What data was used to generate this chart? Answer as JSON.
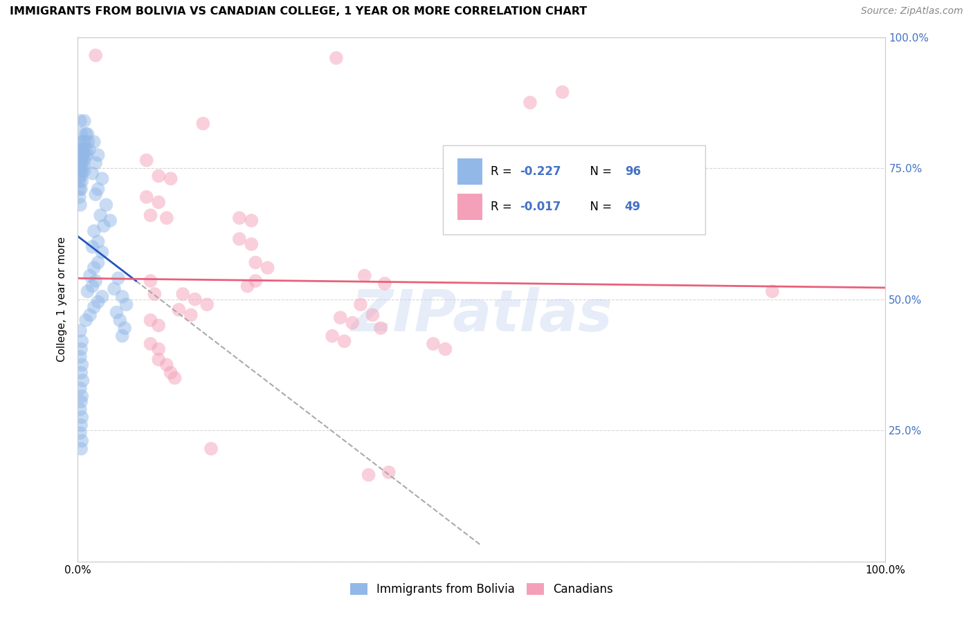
{
  "title": "IMMIGRANTS FROM BOLIVIA VS CANADIAN COLLEGE, 1 YEAR OR MORE CORRELATION CHART",
  "source": "Source: ZipAtlas.com",
  "ylabel": "College, 1 year or more",
  "xlim": [
    0,
    1
  ],
  "ylim": [
    0,
    1
  ],
  "watermark": "ZIPatlas",
  "blue_scatter_color": "#92b8e8",
  "pink_scatter_color": "#f4a0b8",
  "blue_line_color": "#2255bb",
  "pink_line_color": "#e8607a",
  "dashed_color": "#aaaaaa",
  "grid_color": "#cccccc",
  "background_color": "#ffffff",
  "right_tick_color": "#4472c4",
  "legend_box_color": "#eeeeee",
  "legend_box_edge": "#cccccc",
  "blue_points": [
    [
      0.003,
      0.84
    ],
    [
      0.008,
      0.84
    ],
    [
      0.004,
      0.815
    ],
    [
      0.01,
      0.815
    ],
    [
      0.012,
      0.815
    ],
    [
      0.003,
      0.8
    ],
    [
      0.006,
      0.8
    ],
    [
      0.009,
      0.8
    ],
    [
      0.013,
      0.8
    ],
    [
      0.002,
      0.785
    ],
    [
      0.005,
      0.785
    ],
    [
      0.007,
      0.785
    ],
    [
      0.01,
      0.785
    ],
    [
      0.014,
      0.785
    ],
    [
      0.002,
      0.775
    ],
    [
      0.004,
      0.775
    ],
    [
      0.006,
      0.775
    ],
    [
      0.008,
      0.775
    ],
    [
      0.011,
      0.775
    ],
    [
      0.002,
      0.765
    ],
    [
      0.004,
      0.765
    ],
    [
      0.006,
      0.765
    ],
    [
      0.008,
      0.765
    ],
    [
      0.002,
      0.755
    ],
    [
      0.004,
      0.755
    ],
    [
      0.007,
      0.755
    ],
    [
      0.002,
      0.745
    ],
    [
      0.005,
      0.745
    ],
    [
      0.008,
      0.745
    ],
    [
      0.002,
      0.735
    ],
    [
      0.004,
      0.735
    ],
    [
      0.002,
      0.725
    ],
    [
      0.005,
      0.725
    ],
    [
      0.002,
      0.71
    ],
    [
      0.004,
      0.71
    ],
    [
      0.002,
      0.695
    ],
    [
      0.003,
      0.68
    ],
    [
      0.02,
      0.8
    ],
    [
      0.025,
      0.775
    ],
    [
      0.022,
      0.76
    ],
    [
      0.018,
      0.74
    ],
    [
      0.03,
      0.73
    ],
    [
      0.025,
      0.71
    ],
    [
      0.022,
      0.7
    ],
    [
      0.035,
      0.68
    ],
    [
      0.028,
      0.66
    ],
    [
      0.04,
      0.65
    ],
    [
      0.032,
      0.64
    ],
    [
      0.02,
      0.63
    ],
    [
      0.025,
      0.61
    ],
    [
      0.018,
      0.6
    ],
    [
      0.03,
      0.59
    ],
    [
      0.025,
      0.57
    ],
    [
      0.02,
      0.56
    ],
    [
      0.015,
      0.545
    ],
    [
      0.022,
      0.535
    ],
    [
      0.018,
      0.525
    ],
    [
      0.012,
      0.515
    ],
    [
      0.03,
      0.505
    ],
    [
      0.025,
      0.495
    ],
    [
      0.02,
      0.485
    ],
    [
      0.015,
      0.47
    ],
    [
      0.01,
      0.46
    ],
    [
      0.05,
      0.54
    ],
    [
      0.045,
      0.52
    ],
    [
      0.055,
      0.505
    ],
    [
      0.06,
      0.49
    ],
    [
      0.048,
      0.475
    ],
    [
      0.052,
      0.46
    ],
    [
      0.058,
      0.445
    ],
    [
      0.055,
      0.43
    ],
    [
      0.003,
      0.44
    ],
    [
      0.005,
      0.42
    ],
    [
      0.004,
      0.405
    ],
    [
      0.003,
      0.39
    ],
    [
      0.005,
      0.375
    ],
    [
      0.004,
      0.36
    ],
    [
      0.006,
      0.345
    ],
    [
      0.003,
      0.33
    ],
    [
      0.005,
      0.315
    ],
    [
      0.004,
      0.305
    ],
    [
      0.003,
      0.29
    ],
    [
      0.005,
      0.275
    ],
    [
      0.004,
      0.26
    ],
    [
      0.003,
      0.245
    ],
    [
      0.005,
      0.23
    ],
    [
      0.004,
      0.215
    ]
  ],
  "pink_points": [
    [
      0.022,
      0.965
    ],
    [
      0.32,
      0.96
    ],
    [
      0.155,
      0.835
    ],
    [
      0.56,
      0.875
    ],
    [
      0.6,
      0.895
    ],
    [
      0.085,
      0.765
    ],
    [
      0.1,
      0.735
    ],
    [
      0.115,
      0.73
    ],
    [
      0.2,
      0.655
    ],
    [
      0.215,
      0.65
    ],
    [
      0.085,
      0.695
    ],
    [
      0.1,
      0.685
    ],
    [
      0.09,
      0.66
    ],
    [
      0.11,
      0.655
    ],
    [
      0.2,
      0.615
    ],
    [
      0.215,
      0.605
    ],
    [
      0.355,
      0.545
    ],
    [
      0.38,
      0.53
    ],
    [
      0.22,
      0.57
    ],
    [
      0.235,
      0.56
    ],
    [
      0.22,
      0.535
    ],
    [
      0.21,
      0.525
    ],
    [
      0.13,
      0.51
    ],
    [
      0.145,
      0.5
    ],
    [
      0.16,
      0.49
    ],
    [
      0.125,
      0.48
    ],
    [
      0.14,
      0.47
    ],
    [
      0.09,
      0.535
    ],
    [
      0.095,
      0.51
    ],
    [
      0.35,
      0.49
    ],
    [
      0.365,
      0.47
    ],
    [
      0.325,
      0.465
    ],
    [
      0.34,
      0.455
    ],
    [
      0.375,
      0.445
    ],
    [
      0.09,
      0.46
    ],
    [
      0.1,
      0.45
    ],
    [
      0.09,
      0.415
    ],
    [
      0.1,
      0.405
    ],
    [
      0.44,
      0.415
    ],
    [
      0.455,
      0.405
    ],
    [
      0.315,
      0.43
    ],
    [
      0.33,
      0.42
    ],
    [
      0.1,
      0.385
    ],
    [
      0.11,
      0.375
    ],
    [
      0.115,
      0.36
    ],
    [
      0.12,
      0.35
    ],
    [
      0.86,
      0.515
    ],
    [
      0.165,
      0.215
    ],
    [
      0.36,
      0.165
    ],
    [
      0.385,
      0.17
    ]
  ],
  "blue_trend_x": [
    0.0,
    0.072
  ],
  "blue_trend_y": [
    0.62,
    0.535
  ],
  "dashed_trend_x": [
    0.072,
    0.5
  ],
  "dashed_trend_y": [
    0.535,
    0.03
  ],
  "pink_trend_x": [
    0.0,
    1.0
  ],
  "pink_trend_y": [
    0.54,
    0.522
  ]
}
